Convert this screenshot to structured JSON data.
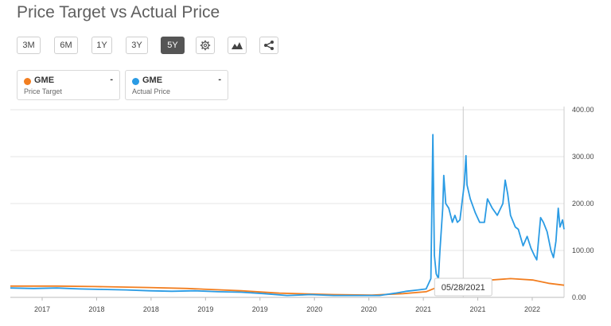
{
  "title": "Price Target vs Actual Price",
  "toolbar": {
    "ranges": [
      "3M",
      "6M",
      "1Y",
      "3Y",
      "5Y"
    ],
    "active_range": "5Y",
    "icons": [
      "gear-icon",
      "mountain-chart-icon",
      "share-icon"
    ]
  },
  "legend": [
    {
      "ticker": "GME",
      "value": "-",
      "label": "Price Target",
      "color": "#f27e20"
    },
    {
      "ticker": "GME",
      "value": "-",
      "label": "Actual Price",
      "color": "#2a9be4"
    }
  ],
  "watermark": "",
  "chart_data": {
    "type": "line",
    "title": "Price Target vs Actual Price",
    "ylim": [
      0,
      400
    ],
    "y_ticks": [
      "0.00",
      "100.00",
      "200.00",
      "300.00",
      "400.00"
    ],
    "y_axis_side": "right",
    "x_tick_labels": [
      "2017",
      "2018",
      "2018",
      "2019",
      "2019",
      "2020",
      "2020",
      "2021",
      "2021",
      "2022"
    ],
    "grid": true,
    "crosshair": {
      "date": "05/28/2021",
      "label": "05/28/2021"
    },
    "series": [
      {
        "name": "Price Target",
        "color": "#f27e20",
        "points": [
          [
            "2016-07-01",
            24
          ],
          [
            "2017-01-01",
            24
          ],
          [
            "2017-06-01",
            23
          ],
          [
            "2018-01-01",
            21
          ],
          [
            "2018-06-01",
            19
          ],
          [
            "2019-01-01",
            14
          ],
          [
            "2019-06-01",
            9
          ],
          [
            "2020-01-01",
            6
          ],
          [
            "2020-06-01",
            5
          ],
          [
            "2020-10-01",
            8
          ],
          [
            "2021-01-01",
            12
          ],
          [
            "2021-03-01",
            25
          ],
          [
            "2021-06-01",
            33
          ],
          [
            "2021-12-01",
            40
          ],
          [
            "2022-03-01",
            37
          ],
          [
            "2022-05-01",
            30
          ],
          [
            "2022-07-01",
            26
          ]
        ]
      },
      {
        "name": "Actual Price",
        "color": "#2a9be4",
        "points": [
          [
            "2016-07-01",
            20
          ],
          [
            "2016-10-01",
            19
          ],
          [
            "2017-01-01",
            20
          ],
          [
            "2017-04-01",
            18
          ],
          [
            "2017-07-01",
            17
          ],
          [
            "2017-10-01",
            16
          ],
          [
            "2018-01-01",
            14
          ],
          [
            "2018-04-01",
            13
          ],
          [
            "2018-07-01",
            14
          ],
          [
            "2018-10-01",
            12
          ],
          [
            "2019-01-01",
            11
          ],
          [
            "2019-04-01",
            8
          ],
          [
            "2019-07-01",
            4
          ],
          [
            "2019-10-01",
            6
          ],
          [
            "2020-01-01",
            4
          ],
          [
            "2020-04-01",
            4
          ],
          [
            "2020-07-01",
            4
          ],
          [
            "2020-09-01",
            9
          ],
          [
            "2020-10-15",
            13
          ],
          [
            "2020-12-01",
            16
          ],
          [
            "2021-01-01",
            18
          ],
          [
            "2021-01-20",
            40
          ],
          [
            "2021-01-28",
            347
          ],
          [
            "2021-02-03",
            90
          ],
          [
            "2021-02-10",
            50
          ],
          [
            "2021-02-19",
            40
          ],
          [
            "2021-02-25",
            100
          ],
          [
            "2021-03-08",
            190
          ],
          [
            "2021-03-12",
            260
          ],
          [
            "2021-03-20",
            200
          ],
          [
            "2021-04-01",
            190
          ],
          [
            "2021-04-15",
            160
          ],
          [
            "2021-04-25",
            175
          ],
          [
            "2021-05-05",
            160
          ],
          [
            "2021-05-15",
            165
          ],
          [
            "2021-05-25",
            210
          ],
          [
            "2021-06-01",
            240
          ],
          [
            "2021-06-08",
            302
          ],
          [
            "2021-06-12",
            240
          ],
          [
            "2021-06-25",
            210
          ],
          [
            "2021-07-15",
            180
          ],
          [
            "2021-08-01",
            160
          ],
          [
            "2021-08-20",
            160
          ],
          [
            "2021-09-01",
            210
          ],
          [
            "2021-09-20",
            190
          ],
          [
            "2021-10-10",
            175
          ],
          [
            "2021-11-01",
            200
          ],
          [
            "2021-11-10",
            250
          ],
          [
            "2021-11-20",
            220
          ],
          [
            "2021-12-01",
            175
          ],
          [
            "2021-12-20",
            150
          ],
          [
            "2022-01-01",
            145
          ],
          [
            "2022-01-20",
            110
          ],
          [
            "2022-02-05",
            130
          ],
          [
            "2022-02-20",
            105
          ],
          [
            "2022-03-05",
            90
          ],
          [
            "2022-03-15",
            80
          ],
          [
            "2022-03-30",
            170
          ],
          [
            "2022-04-10",
            160
          ],
          [
            "2022-04-25",
            140
          ],
          [
            "2022-05-10",
            100
          ],
          [
            "2022-05-20",
            85
          ],
          [
            "2022-05-30",
            120
          ],
          [
            "2022-06-08",
            190
          ],
          [
            "2022-06-15",
            150
          ],
          [
            "2022-06-25",
            165
          ],
          [
            "2022-07-01",
            145
          ]
        ]
      }
    ]
  }
}
